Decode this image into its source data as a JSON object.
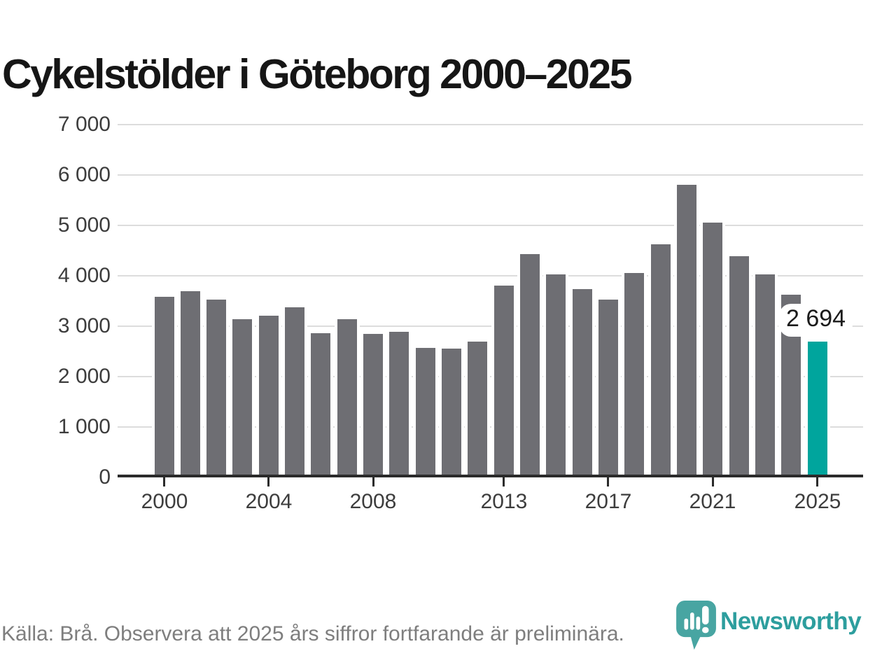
{
  "title": "Cykelstölder i Göteborg 2000–2025",
  "annotation": {
    "label": "2 694"
  },
  "source_note": "Källa: Brå. Observera att 2025 års siffror fortfarande är preliminära.",
  "logo": {
    "wordmark": "Newsworthy",
    "icon": "newsworthy-bubble-barchart-icon"
  },
  "colors": {
    "bar": "#6e6e73",
    "highlight_bar": "#00a59d",
    "gridline": "#dcdcdc",
    "axis": "#2b2b2b",
    "title_text": "#161616",
    "tick_text": "#3d3d3d",
    "source_text": "#7e7e7e",
    "logo_teal": "#2d9e9e",
    "logo_icon_teal": "#48a5a2"
  },
  "chart_data": {
    "type": "bar",
    "title": "Cykelstölder i Göteborg 2000–2025",
    "xlabel": "",
    "ylabel": "",
    "x": [
      2000,
      2001,
      2002,
      2003,
      2004,
      2005,
      2006,
      2007,
      2008,
      2009,
      2010,
      2011,
      2012,
      2013,
      2014,
      2015,
      2016,
      2017,
      2018,
      2019,
      2020,
      2021,
      2022,
      2023,
      2024,
      2025
    ],
    "values": [
      3590,
      3700,
      3530,
      3140,
      3210,
      3380,
      2860,
      3140,
      2850,
      2890,
      2570,
      2560,
      2700,
      3800,
      4430,
      4030,
      3740,
      3530,
      4060,
      4630,
      5810,
      5050,
      4390,
      4030,
      3620,
      2694
    ],
    "highlight_index": 25,
    "highlight_value_label": "2 694",
    "ylim": [
      0,
      7000
    ],
    "y_ticks": [
      0,
      1000,
      2000,
      3000,
      4000,
      5000,
      6000,
      7000
    ],
    "y_tick_labels": [
      "0",
      "1 000",
      "2 000",
      "3 000",
      "4 000",
      "5 000",
      "6 000",
      "7 000"
    ],
    "x_tick_years": [
      2000,
      2004,
      2008,
      2013,
      2017,
      2021,
      2025
    ],
    "x_tick_labels": [
      "2000",
      "2004",
      "2008",
      "2013",
      "2017",
      "2021",
      "2025"
    ],
    "grid": "horizontal-major-only",
    "legend": "none"
  }
}
